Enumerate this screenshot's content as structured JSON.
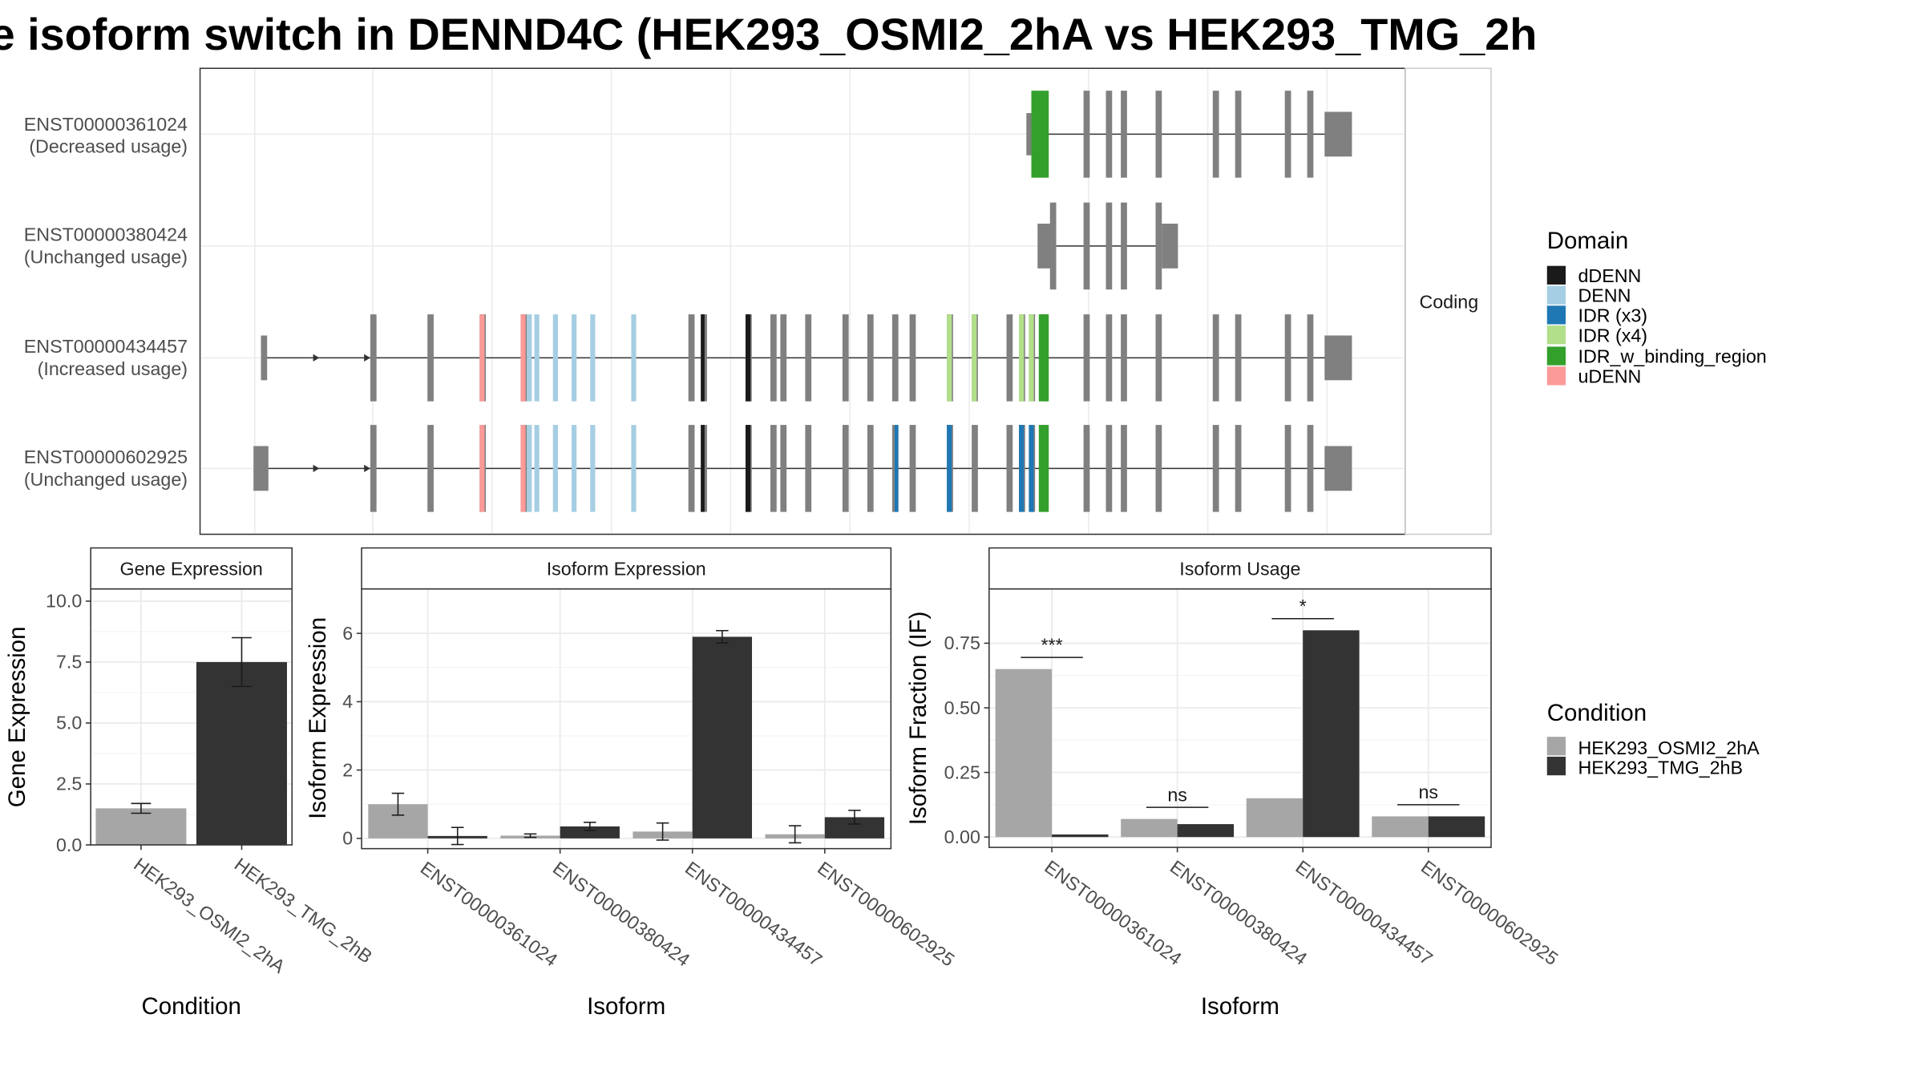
{
  "title": "e isoform switch in DENND4C (HEK293_OSMI2_2hA vs HEK293_TMG_2h",
  "structure_panel": {
    "strip_label": "Coding",
    "transcripts": [
      {
        "id": "ENST00000361024",
        "usage": "(Decreased usage)"
      },
      {
        "id": "ENST00000380424",
        "usage": "(Unchanged usage)"
      },
      {
        "id": "ENST00000434457",
        "usage": "(Increased usage)"
      },
      {
        "id": "ENST00000602925",
        "usage": "(Unchanged usage)"
      }
    ]
  },
  "legend_domain": {
    "title": "Domain",
    "items": [
      {
        "label": "dDENN",
        "color": "#1a1a1a"
      },
      {
        "label": "DENN",
        "color": "#a6cee3"
      },
      {
        "label": "IDR (x3)",
        "color": "#1f78b4"
      },
      {
        "label": "IDR (x4)",
        "color": "#b2df8a"
      },
      {
        "label": "IDR_w_binding_region",
        "color": "#33a02c"
      },
      {
        "label": "uDENN",
        "color": "#fb9a99"
      }
    ]
  },
  "legend_condition": {
    "title": "Condition",
    "items": [
      {
        "label": "HEK293_OSMI2_2hA",
        "color": "#a6a6a6"
      },
      {
        "label": "HEK293_TMG_2hB",
        "color": "#333333"
      }
    ]
  },
  "chart_data": [
    {
      "type": "bar",
      "title": "Gene Expression",
      "xlabel": "Condition",
      "ylabel": "Gene Expression",
      "categories": [
        "HEK293_OSMI2_2hA",
        "HEK293_TMG_2hB"
      ],
      "values": [
        1.5,
        7.5
      ],
      "errors": [
        0.2,
        1.0
      ],
      "ylim": [
        0,
        10.5
      ],
      "yticks": [
        0.0,
        2.5,
        5.0,
        7.5,
        10.0
      ],
      "ytick_labels": [
        "0.0",
        "2.5",
        "5.0",
        "7.5",
        "10.0"
      ]
    },
    {
      "type": "bar",
      "title": "Isoform Expression",
      "xlabel": "Isoform",
      "ylabel": "Isoform Expression",
      "categories": [
        "ENST00000361024",
        "ENST00000380424",
        "ENST00000434457",
        "ENST00000602925"
      ],
      "series": [
        {
          "name": "HEK293_OSMI2_2hA",
          "values": [
            1.0,
            0.08,
            0.2,
            0.12
          ],
          "errors": [
            0.32,
            0.05,
            0.25,
            0.25
          ]
        },
        {
          "name": "HEK293_TMG_2hB",
          "values": [
            0.07,
            0.35,
            5.9,
            0.62
          ],
          "errors": [
            0.25,
            0.12,
            0.18,
            0.2
          ]
        }
      ],
      "ylim": [
        -0.3,
        7.3
      ],
      "yticks": [
        0,
        2,
        4,
        6
      ],
      "ytick_labels": [
        "0",
        "2",
        "4",
        "6"
      ]
    },
    {
      "type": "bar",
      "title": "Isoform Usage",
      "xlabel": "Isoform",
      "ylabel": "Isoform Fraction (IF)",
      "categories": [
        "ENST00000361024",
        "ENST00000380424",
        "ENST00000434457",
        "ENST00000602925"
      ],
      "series": [
        {
          "name": "HEK293_OSMI2_2hA",
          "values": [
            0.65,
            0.07,
            0.15,
            0.08
          ]
        },
        {
          "name": "HEK293_TMG_2hB",
          "values": [
            0.01,
            0.05,
            0.8,
            0.08
          ]
        }
      ],
      "significance": [
        "***",
        "ns",
        "*",
        "ns"
      ],
      "ylim": [
        -0.04,
        0.96
      ],
      "yticks": [
        0.0,
        0.25,
        0.5,
        0.75
      ],
      "ytick_labels": [
        "0.00",
        "0.25",
        "0.50",
        "0.75"
      ]
    }
  ]
}
